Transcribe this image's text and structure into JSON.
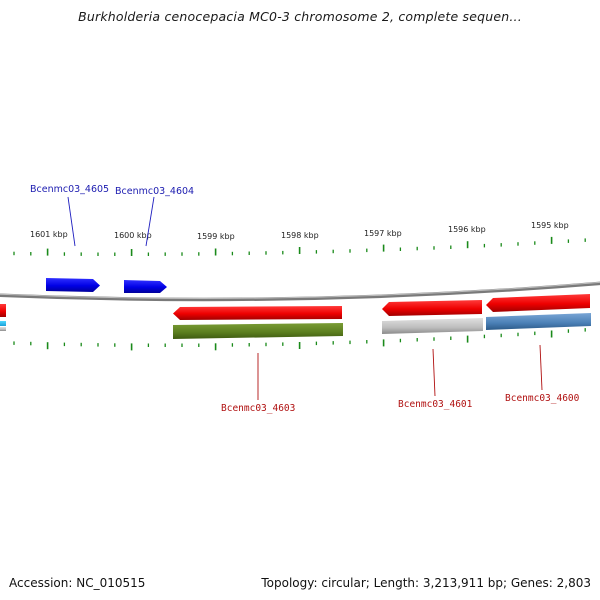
{
  "title": "Burkholderia cenocepacia MC0-3 chromosome 2, complete sequen...",
  "scale": {
    "ticks": [
      {
        "label": "1601 kbp"
      },
      {
        "label": "1600 kbp"
      },
      {
        "label": "1599 kbp"
      },
      {
        "label": "1598 kbp"
      },
      {
        "label": "1597 kbp"
      },
      {
        "label": "1596 kbp"
      },
      {
        "label": "1595 kbp"
      }
    ]
  },
  "genes": [
    {
      "label": "Bcenmc03_4605",
      "strand": "forward",
      "color": "#0000ee"
    },
    {
      "label": "Bcenmc03_4604",
      "strand": "forward",
      "color": "#0000ee"
    },
    {
      "label": "Bcenmc03_4603",
      "strand": "reverse",
      "color": "#ee0000"
    },
    {
      "label": "Bcenmc03_4601",
      "strand": "reverse",
      "color": "#ee0000"
    },
    {
      "label": "Bcenmc03_4600",
      "strand": "reverse",
      "color": "#ee0000"
    }
  ],
  "features": {
    "cog_colors": [
      "#5a7d1e",
      "#bdbdbd",
      "#4a7fb5"
    ],
    "backbone_color": "#888888",
    "tick_color": "#1a8a1a"
  },
  "footer": {
    "accession": "Accession: NC_010515",
    "summary": "Topology: circular; Length: 3,213,911 bp; Genes: 2,803"
  }
}
